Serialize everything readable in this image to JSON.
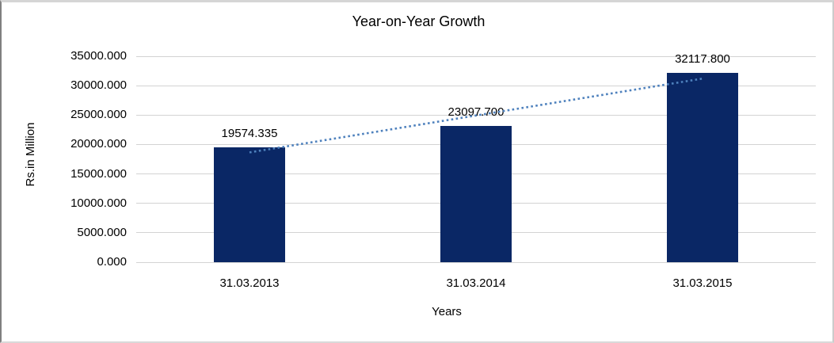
{
  "frame": {
    "background": "#FFFFFF",
    "border_top_color": "#D5D5D5",
    "border_left_color": "#808080",
    "border_right_color": "#CCCCCC",
    "border_bottom_color": "#D9D9D9"
  },
  "chart_data": {
    "type": "bar",
    "title": "Year-on-Year Growth",
    "xlabel": "Years",
    "ylabel": "Rs.in Million",
    "categories": [
      "31.03.2013",
      "31.03.2014",
      "31.03.2015"
    ],
    "values": [
      19574.335,
      23097.7,
      32117.8
    ],
    "data_labels": [
      "19574.335",
      "23097.700",
      "32117.800"
    ],
    "ylim": [
      0,
      35000
    ],
    "ytick_interval": 5000,
    "ytick_labels": [
      "0.000",
      "5000.000",
      "10000.000",
      "15000.000",
      "20000.000",
      "25000.000",
      "30000.000",
      "35000.000"
    ],
    "grid": true,
    "legend": "none",
    "trendline": {
      "type": "linear",
      "style": "dotted",
      "endpoint_values": [
        18658.3,
        31201.7
      ],
      "color": "#4E81BD"
    },
    "colors": {
      "bar": "#0A2765",
      "trendline": "#4E81BD",
      "gridline": "#D3D3D3",
      "text": "#000000"
    }
  }
}
